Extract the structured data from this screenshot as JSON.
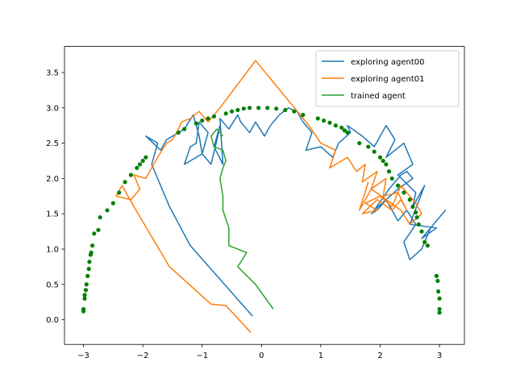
{
  "chart_data": {
    "type": "line",
    "title": "",
    "xlabel": "",
    "ylabel": "",
    "xlim": [
      -3.32,
      3.42
    ],
    "ylim": [
      -0.35,
      3.87
    ],
    "x_ticks": [
      -3,
      -2,
      -1,
      0,
      1,
      2,
      3
    ],
    "y_ticks": [
      0.0,
      0.5,
      1.0,
      1.5,
      2.0,
      2.5,
      3.0,
      3.5
    ],
    "x_tick_labels": [
      "−3",
      "−2",
      "−1",
      "0",
      "1",
      "2",
      "3"
    ],
    "y_tick_labels": [
      "0.0",
      "0.5",
      "1.0",
      "1.5",
      "2.0",
      "2.5",
      "3.0",
      "3.5"
    ],
    "grid": false,
    "legend_position": "top-right",
    "legend": [
      {
        "label": "exploring agent00",
        "color": "#1f77b4"
      },
      {
        "label": "exploring agent01",
        "color": "#ff7f0e"
      },
      {
        "label": "trained agent",
        "color": "#2ca02c"
      }
    ],
    "series": [
      {
        "name": "exploring agent00",
        "kind": "line",
        "color": "#1f77b4",
        "x": [
          -0.15,
          -1.2,
          -1.55,
          -1.85,
          -1.75,
          -1.95,
          -1.7,
          -1.6,
          -1.3,
          -1.15,
          -1.05,
          -1.0,
          -1.3,
          -1.2,
          -1.1,
          -1.05,
          -0.9,
          -1.0,
          -0.85,
          -0.75,
          -0.7,
          -0.8,
          -0.65,
          -0.7,
          -0.55,
          -0.4,
          -0.35,
          -0.2,
          -0.1,
          0.05,
          0.15,
          0.3,
          0.45,
          0.6,
          0.7,
          0.85,
          0.75,
          1.0,
          1.2,
          1.3,
          1.5,
          1.45,
          1.7,
          1.9,
          2.1,
          2.25,
          2.1,
          2.4,
          2.55,
          2.3,
          2.6,
          2.55,
          2.75,
          2.5,
          2.95,
          2.7,
          3.1,
          2.85,
          2.7,
          2.5,
          2.4,
          2.6,
          2.45,
          2.3,
          2.1,
          1.9,
          2.15,
          2.35,
          2.45,
          2.55,
          2.3,
          2.1,
          1.95,
          1.85
        ],
        "y": [
          0.05,
          1.05,
          1.6,
          2.2,
          2.5,
          2.6,
          2.4,
          2.55,
          2.7,
          2.9,
          2.6,
          2.35,
          2.2,
          2.45,
          2.5,
          2.8,
          2.65,
          2.35,
          2.2,
          2.55,
          2.75,
          2.45,
          2.2,
          2.85,
          2.7,
          2.9,
          2.8,
          2.65,
          2.8,
          2.6,
          2.75,
          2.9,
          3.0,
          2.95,
          2.8,
          2.65,
          2.4,
          2.45,
          2.3,
          2.5,
          2.65,
          2.75,
          2.6,
          2.45,
          2.75,
          2.55,
          2.3,
          2.5,
          2.2,
          2.05,
          1.8,
          1.6,
          1.9,
          1.35,
          1.3,
          1.15,
          1.55,
          1.3,
          1.0,
          0.85,
          1.1,
          1.35,
          1.55,
          1.4,
          1.7,
          1.55,
          1.85,
          2.05,
          2.1,
          2.0,
          1.85,
          1.7,
          1.55,
          1.5
        ]
      },
      {
        "name": "exploring agent01",
        "kind": "line",
        "color": "#ff7f0e",
        "x": [
          -0.18,
          -0.6,
          -0.85,
          -1.55,
          -2.15,
          -2.35,
          -2.45,
          -2.2,
          -2.05,
          -2.15,
          -1.95,
          -1.75,
          -1.6,
          -1.5,
          -1.4,
          -1.35,
          -1.2,
          -1.05,
          -0.9,
          -0.8,
          -0.7,
          -0.1,
          0.8,
          1.0,
          1.25,
          1.15,
          1.45,
          1.6,
          1.75,
          1.7,
          1.95,
          1.85,
          2.1,
          2.05,
          2.3,
          2.45,
          2.35,
          2.2,
          1.95,
          1.7,
          1.95,
          1.75,
          2.0,
          2.2,
          2.35,
          2.6,
          2.7,
          2.5,
          2.35,
          2.1,
          1.85,
          1.65,
          1.8
        ],
        "y": [
          -0.18,
          0.2,
          0.22,
          0.75,
          1.6,
          1.9,
          1.75,
          1.7,
          1.85,
          2.05,
          2.0,
          2.3,
          2.5,
          2.55,
          2.7,
          2.8,
          2.85,
          2.95,
          2.8,
          2.9,
          3.0,
          3.67,
          2.75,
          2.5,
          2.4,
          2.15,
          2.3,
          2.1,
          2.2,
          1.95,
          2.1,
          1.85,
          2.0,
          1.75,
          1.8,
          1.55,
          1.7,
          1.55,
          1.7,
          1.5,
          1.55,
          1.65,
          1.75,
          1.6,
          1.9,
          1.65,
          1.5,
          1.35,
          1.55,
          1.7,
          1.85,
          1.55,
          1.95
        ]
      },
      {
        "name": "trained agent",
        "kind": "line",
        "color": "#2ca02c",
        "x": [
          0.2,
          -0.1,
          -0.4,
          -0.25,
          -0.55,
          -0.55,
          -0.65,
          -0.65,
          -0.7,
          -0.65,
          -0.6,
          -0.65,
          -0.8,
          -0.85,
          -0.75,
          -0.65
        ],
        "y": [
          0.15,
          0.5,
          0.75,
          0.95,
          1.05,
          1.3,
          1.55,
          1.75,
          2.0,
          2.15,
          2.25,
          2.4,
          2.45,
          2.6,
          2.7,
          2.6
        ]
      },
      {
        "name": "",
        "kind": "scatter",
        "color": "#008000",
        "x": [
          -3.0,
          -3.0,
          -2.98,
          -2.98,
          -2.96,
          -2.95,
          -2.93,
          -2.91,
          -2.9,
          -2.88,
          -2.87,
          -2.85,
          -2.82,
          -2.75,
          -2.72,
          -2.6,
          -2.5,
          -2.4,
          -2.3,
          -2.2,
          -2.1,
          -2.05,
          -2.0,
          -1.95,
          -1.4,
          -1.3,
          -1.1,
          -1.0,
          -0.9,
          -0.8,
          -0.6,
          -0.5,
          -0.4,
          -0.3,
          -0.2,
          -0.05,
          0.1,
          0.25,
          0.4,
          0.55,
          0.7,
          0.95,
          1.05,
          1.15,
          1.25,
          1.35,
          1.4,
          1.45,
          1.65,
          1.8,
          1.9,
          2.0,
          2.05,
          2.1,
          2.15,
          2.2,
          2.3,
          2.4,
          2.5,
          2.55,
          2.6,
          2.62,
          2.65,
          2.7,
          2.75,
          2.8,
          2.95,
          2.97,
          2.98,
          3.0,
          3.0,
          3.0
        ],
        "y": [
          0.12,
          0.15,
          0.3,
          0.35,
          0.42,
          0.5,
          0.62,
          0.72,
          0.82,
          0.92,
          0.95,
          1.05,
          1.22,
          1.27,
          1.45,
          1.55,
          1.65,
          1.8,
          1.95,
          2.05,
          2.15,
          2.2,
          2.25,
          2.3,
          2.65,
          2.7,
          2.78,
          2.82,
          2.85,
          2.88,
          2.92,
          2.95,
          2.97,
          2.99,
          3.0,
          3.0,
          3.0,
          2.99,
          2.97,
          2.95,
          2.9,
          2.85,
          2.82,
          2.79,
          2.75,
          2.72,
          2.68,
          2.65,
          2.5,
          2.45,
          2.38,
          2.3,
          2.25,
          2.2,
          2.1,
          2.0,
          1.9,
          1.8,
          1.7,
          1.6,
          1.52,
          1.45,
          1.35,
          1.25,
          1.1,
          1.05,
          0.62,
          0.55,
          0.4,
          0.3,
          0.15,
          0.1
        ]
      }
    ]
  }
}
